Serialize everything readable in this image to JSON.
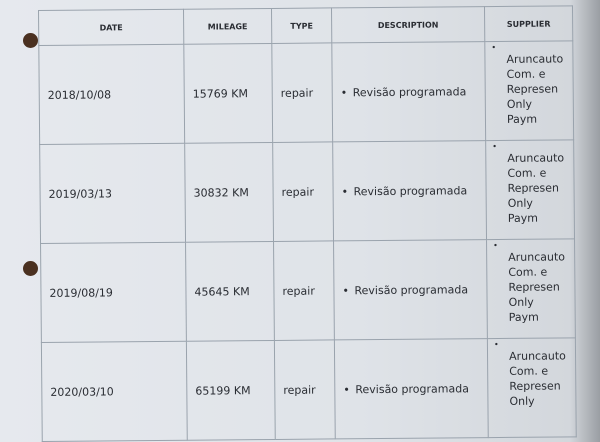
{
  "table": {
    "headers": [
      "DATE",
      "MILEAGE",
      "TYPE",
      "DESCRIPTION",
      "SUPPLIER"
    ],
    "rows": [
      {
        "date": "2018/10/08",
        "mileage": "15769 KM",
        "type": "repair",
        "description": "Revisão programada",
        "supplier": [
          "Aruncauto",
          "Com. e",
          "Represen",
          "Only",
          "Paym"
        ]
      },
      {
        "date": "2019/03/13",
        "mileage": "30832 KM",
        "type": "repair",
        "description": "Revisão programada",
        "supplier": [
          "Aruncauto",
          "Com. e",
          "Represen",
          "Only",
          "Paym"
        ]
      },
      {
        "date": "2019/08/19",
        "mileage": "45645 KM",
        "type": "repair",
        "description": "Revisão programada",
        "supplier": [
          "Aruncauto",
          "Com. e",
          "Represen",
          "Only",
          "Paym"
        ]
      },
      {
        "date": "2020/03/10",
        "mileage": "65199 KM",
        "type": "repair",
        "description": "Revisão programada",
        "supplier": [
          "Aruncauto",
          "Com. e",
          "Represen",
          "Only"
        ]
      }
    ]
  }
}
